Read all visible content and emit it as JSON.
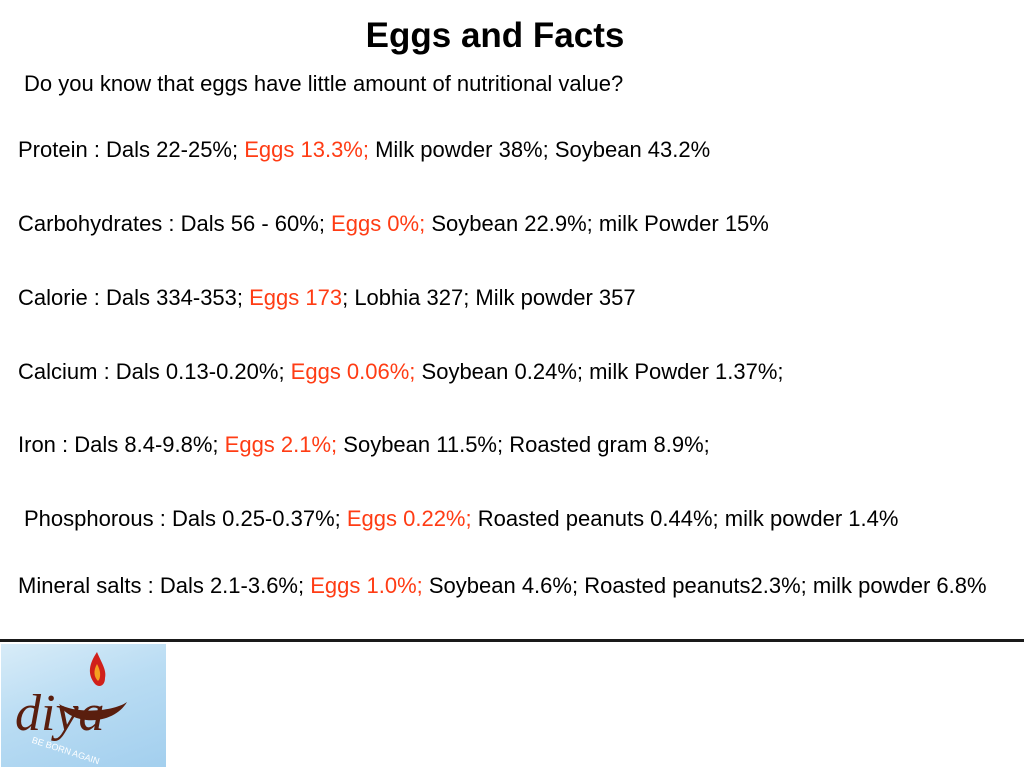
{
  "title": "Eggs and Facts",
  "subtitle": "Do you know that eggs have little amount of nutritional value?",
  "facts": [
    {
      "pre": "Protein : Dals 22-25%; ",
      "egg": "Eggs 13.3%;",
      "post": " Milk powder 38%; Soybean 43.2%"
    },
    {
      "pre": "Carbohydrates : Dals 56 - 60%; ",
      "egg": "Eggs 0%;",
      "post": " Soybean 22.9%; milk Powder 15%"
    },
    {
      "pre": "Calorie : Dals 334-353; ",
      "egg": "Eggs 173",
      "post": "; Lobhia 327; Milk powder 357"
    },
    {
      "pre": "Calcium : Dals 0.13-0.20%; ",
      "egg": "Eggs 0.06%;",
      "post": " Soybean 0.24%; milk Powder 1.37%;"
    },
    {
      "pre": "Iron : Dals 8.4-9.8%; ",
      "egg": "Eggs 2.1%;",
      "post": " Soybean 11.5%; Roasted gram 8.9%;"
    },
    {
      "pre": "Phosphorous :  Dals 0.25-0.37%; ",
      "egg": "Eggs 0.22%;",
      "post": " Roasted peanuts 0.44%; milk powder 1.4%"
    },
    {
      "pre": "Mineral salts : Dals 2.1-3.6%; ",
      "egg": "Eggs 1.0%;",
      "post": " Soybean 4.6%; Roasted peanuts2.3%;  milk powder 6.8%"
    }
  ],
  "logo": {
    "text": "diya",
    "tagline": "BE BORN AGAIN"
  },
  "colors": {
    "highlight": "#ff3c14",
    "logo_text": "#5a1e0e",
    "logo_flame": "#d0201a"
  }
}
